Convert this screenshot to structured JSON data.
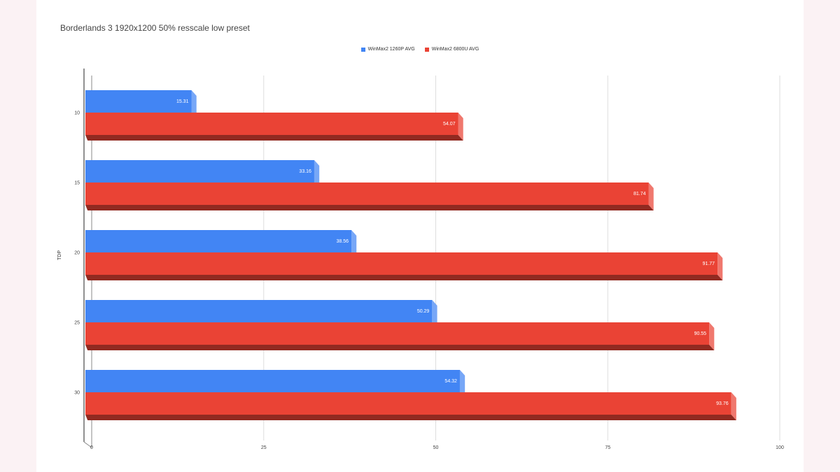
{
  "chart_data": {
    "type": "bar",
    "orientation": "horizontal",
    "title": "Borderlands 3 1920x1200 50% resscale low preset",
    "ylabel": "TDP",
    "categories": [
      "10",
      "15",
      "20",
      "25",
      "30"
    ],
    "series": [
      {
        "name": "WinMax2 1260P AVG",
        "color": "#4285f4",
        "values": [
          15.31,
          33.16,
          38.56,
          50.29,
          54.32
        ]
      },
      {
        "name": "WinMax2 6800U AVG",
        "color": "#ea4335",
        "values": [
          54.07,
          81.74,
          91.77,
          90.55,
          93.76
        ]
      }
    ],
    "xlim": [
      0,
      100
    ],
    "xticks": [
      0,
      25,
      50,
      75,
      100
    ],
    "grid": true,
    "legend_position": "top-center",
    "style": "3d"
  }
}
